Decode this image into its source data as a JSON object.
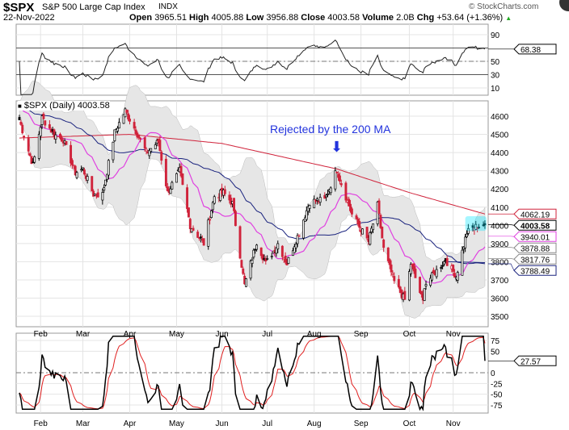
{
  "header": {
    "symbol": "$SPX",
    "name": "S&P 500 Large Cap Index",
    "exchange": "INDX",
    "date": "22-Nov-2022",
    "copyright": "© StockCharts.com",
    "open_label": "Open",
    "open": "3965.51",
    "high_label": "High",
    "high": "4005.88",
    "low_label": "Low",
    "low": "3956.88",
    "close_label": "Close",
    "close": "4003.58",
    "volume_label": "Volume",
    "volume": "2.0B",
    "chg_label": "Chg",
    "chg": "+53.64 (+1.36%)"
  },
  "chart_data": {
    "type": "candlestick",
    "title": "$SPX (Daily) 4003.58",
    "annotation": "Rejected by the 200 MA",
    "months": [
      "Feb",
      "Mar",
      "Apr",
      "May",
      "Jun",
      "Jul",
      "Aug",
      "Sep",
      "Oct",
      "Nov"
    ],
    "month_dates": [
      "2022-02-01",
      "2022-03-01",
      "2022-04-01",
      "2022-05-02",
      "2022-06-01",
      "2022-07-01",
      "2022-08-01",
      "2022-09-01",
      "2022-10-03",
      "2022-11-01"
    ],
    "price_ticks": [
      4600,
      4500,
      4400,
      4300,
      4200,
      4100,
      4000,
      3900,
      3800,
      3700,
      3600,
      3500
    ],
    "ylim": [
      3460,
      4680
    ],
    "anchor_closes": [
      [
        "2022-01-18",
        4580
      ],
      [
        "2022-01-24",
        4410
      ],
      [
        "2022-01-27",
        4330
      ],
      [
        "2022-02-02",
        4590
      ],
      [
        "2022-02-10",
        4500
      ],
      [
        "2022-02-16",
        4470
      ],
      [
        "2022-02-24",
        4290
      ],
      [
        "2022-03-01",
        4310
      ],
      [
        "2022-03-08",
        4170
      ],
      [
        "2022-03-14",
        4170
      ],
      [
        "2022-03-22",
        4510
      ],
      [
        "2022-03-29",
        4630
      ],
      [
        "2022-04-05",
        4520
      ],
      [
        "2022-04-12",
        4400
      ],
      [
        "2022-04-20",
        4460
      ],
      [
        "2022-04-26",
        4180
      ],
      [
        "2022-05-04",
        4300
      ],
      [
        "2022-05-11",
        4000
      ],
      [
        "2022-05-20",
        3900
      ],
      [
        "2022-05-27",
        4160
      ],
      [
        "2022-06-02",
        4180
      ],
      [
        "2022-06-08",
        4120
      ],
      [
        "2022-06-16",
        3670
      ],
      [
        "2022-06-24",
        3910
      ],
      [
        "2022-06-30",
        3790
      ],
      [
        "2022-07-08",
        3900
      ],
      [
        "2022-07-14",
        3790
      ],
      [
        "2022-07-22",
        3960
      ],
      [
        "2022-07-29",
        4130
      ],
      [
        "2022-08-08",
        4140
      ],
      [
        "2022-08-16",
        4305
      ],
      [
        "2022-08-19",
        4230
      ],
      [
        "2022-08-26",
        4060
      ],
      [
        "2022-09-06",
        3910
      ],
      [
        "2022-09-12",
        4110
      ],
      [
        "2022-09-16",
        3870
      ],
      [
        "2022-09-23",
        3690
      ],
      [
        "2022-09-30",
        3590
      ],
      [
        "2022-10-04",
        3790
      ],
      [
        "2022-10-12",
        3580
      ],
      [
        "2022-10-13",
        3670
      ],
      [
        "2022-10-21",
        3750
      ],
      [
        "2022-10-27",
        3810
      ],
      [
        "2022-11-03",
        3720
      ],
      [
        "2022-11-10",
        3960
      ],
      [
        "2022-11-15",
        3990
      ],
      [
        "2022-11-22",
        4003.58
      ]
    ],
    "ma200_anchors": [
      [
        "2022-01-18",
        4480
      ],
      [
        "2022-04-01",
        4500
      ],
      [
        "2022-06-01",
        4450
      ],
      [
        "2022-08-16",
        4310
      ],
      [
        "2022-10-03",
        4180
      ],
      [
        "2022-11-22",
        4062.19
      ]
    ],
    "price_labels": [
      {
        "text": "4062.19",
        "value": 4062.19,
        "color": "#d0233b"
      },
      {
        "text": "4003.58",
        "value": 4003.58,
        "color": "#000000",
        "bold": true
      },
      {
        "text": "3940.01",
        "value": 3940.01,
        "color": "#e040e0"
      },
      {
        "text": "3878.88",
        "value": 3878.88,
        "color": "#888888"
      },
      {
        "text": "3817.76",
        "value": 3817.76,
        "color": "#888888"
      },
      {
        "text": "3788.49",
        "value": 3788.49,
        "color": "#1a237e"
      }
    ],
    "rsi": {
      "ticks": [
        90,
        50,
        30,
        10
      ],
      "overbought": 70,
      "oversold": 30,
      "last": "68.38"
    },
    "oscillator": {
      "ticks": [
        75,
        50,
        0,
        -25,
        -50,
        -75
      ],
      "last": "27.57"
    },
    "colors": {
      "ma200": "#d0233b",
      "ma50": "#1a237e",
      "ma20": "#e040e0",
      "band": "#e6e6e6",
      "down": "#d0233b",
      "up": "#000000",
      "annotation": "#2233dd",
      "rsi_fill_high": "#4a7a4a",
      "rsi_fill_low": "#8a5a5a"
    }
  }
}
